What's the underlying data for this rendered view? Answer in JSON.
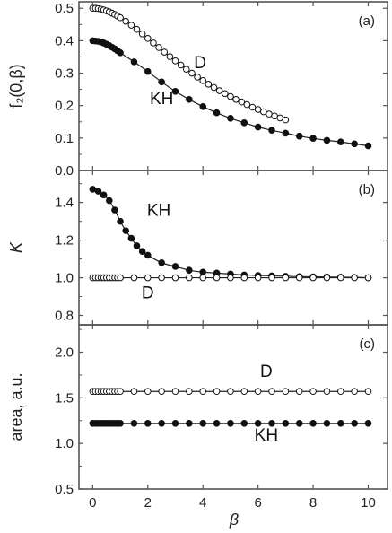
{
  "chart_data": [
    {
      "type": "line",
      "panel_label": "(a)",
      "ylabel": "f₂(0,β)",
      "ylim": [
        0,
        0.52
      ],
      "yticks": [
        0.0,
        0.1,
        0.2,
        0.3,
        0.4,
        0.5
      ],
      "ytick_labels": [
        "0.0",
        "0.1",
        "0.2",
        "0.3",
        "0.4",
        "0.5"
      ],
      "xlim": [
        -0.5,
        10.7
      ],
      "series": [
        {
          "name": "D",
          "marker": "open-circle",
          "label_at": [
            3.9,
            0.315
          ],
          "x": [
            0,
            0.1,
            0.2,
            0.3,
            0.4,
            0.5,
            0.6,
            0.7,
            0.8,
            0.9,
            1.0,
            1.2,
            1.4,
            1.6,
            1.8,
            2.0,
            2.2,
            2.4,
            2.6,
            2.8,
            3.0,
            3.2,
            3.4,
            3.6,
            3.8,
            4.0,
            4.2,
            4.4,
            4.6,
            4.8,
            5.0,
            5.2,
            5.4,
            5.6,
            5.8,
            6.0,
            6.2,
            6.4,
            6.6,
            6.8,
            7.0
          ],
          "y": [
            0.5,
            0.5,
            0.499,
            0.497,
            0.495,
            0.492,
            0.489,
            0.485,
            0.481,
            0.476,
            0.471,
            0.46,
            0.448,
            0.435,
            0.421,
            0.407,
            0.393,
            0.379,
            0.365,
            0.351,
            0.338,
            0.325,
            0.312,
            0.3,
            0.288,
            0.277,
            0.266,
            0.256,
            0.246,
            0.237,
            0.228,
            0.219,
            0.211,
            0.203,
            0.195,
            0.188,
            0.181,
            0.174,
            0.168,
            0.162,
            0.156
          ]
        },
        {
          "name": "KH",
          "marker": "filled-circle",
          "label_at": [
            2.5,
            0.205
          ],
          "x": [
            0,
            0.1,
            0.2,
            0.3,
            0.4,
            0.5,
            0.6,
            0.7,
            0.8,
            0.9,
            1.0,
            1.5,
            2.0,
            2.5,
            3.0,
            3.5,
            4.0,
            4.5,
            5.0,
            5.5,
            6.0,
            6.5,
            7.0,
            7.5,
            8.0,
            8.5,
            9.0,
            9.5,
            10.0
          ],
          "y": [
            0.4,
            0.399,
            0.398,
            0.396,
            0.393,
            0.389,
            0.385,
            0.38,
            0.375,
            0.369,
            0.363,
            0.335,
            0.305,
            0.273,
            0.244,
            0.219,
            0.197,
            0.178,
            0.161,
            0.147,
            0.134,
            0.124,
            0.115,
            0.106,
            0.099,
            0.093,
            0.088,
            0.082,
            0.076
          ]
        }
      ]
    },
    {
      "type": "line",
      "panel_label": "(b)",
      "ylabel": "K",
      "ylim": [
        0.75,
        1.57
      ],
      "yticks": [
        0.8,
        1.0,
        1.2,
        1.4
      ],
      "ytick_labels": [
        "0.8",
        "1.0",
        "1.2",
        "1.4"
      ],
      "xlim": [
        -0.5,
        10.7
      ],
      "series": [
        {
          "name": "KH",
          "marker": "filled-circle",
          "label_at": [
            2.4,
            1.33
          ],
          "x": [
            0,
            0.2,
            0.4,
            0.6,
            0.8,
            1.0,
            1.2,
            1.4,
            1.6,
            1.8,
            2.0,
            2.5,
            3.0,
            3.5,
            4.0,
            4.5,
            5.0,
            5.5,
            6.0,
            6.5,
            7.0,
            7.5,
            8.0,
            8.5,
            9.0,
            9.5,
            10.0
          ],
          "y": [
            1.47,
            1.46,
            1.44,
            1.41,
            1.36,
            1.3,
            1.25,
            1.21,
            1.17,
            1.14,
            1.12,
            1.08,
            1.06,
            1.04,
            1.03,
            1.025,
            1.02,
            1.015,
            1.012,
            1.01,
            1.008,
            1.006,
            1.005,
            1.004,
            1.003,
            1.002,
            1.0
          ]
        },
        {
          "name": "D",
          "marker": "open-circle",
          "label_at": [
            2.0,
            0.89
          ],
          "x": [
            0,
            0.1,
            0.2,
            0.3,
            0.4,
            0.5,
            0.6,
            0.7,
            0.8,
            0.9,
            1.0,
            1.5,
            2.0,
            2.5,
            3.0,
            3.5,
            4.0,
            4.5,
            5.0,
            5.5,
            6.0,
            6.5,
            7.0,
            7.5,
            8.0,
            8.5,
            9.0,
            9.5,
            10.0
          ],
          "y": [
            1.0,
            1.0,
            1.0,
            1.0,
            1.0,
            1.0,
            1.0,
            1.0,
            1.0,
            1.0,
            1.0,
            1.0,
            1.0,
            1.0,
            1.0,
            1.0,
            1.0,
            1.0,
            1.0,
            1.0,
            1.0,
            1.0,
            1.0,
            1.0,
            1.0,
            1.0,
            1.0,
            1.0,
            1.0
          ]
        }
      ]
    },
    {
      "type": "line",
      "panel_label": "(c)",
      "ylabel": "area, a.u.",
      "ylim": [
        0.5,
        2.3
      ],
      "yticks": [
        0.5,
        1.0,
        1.5,
        2.0
      ],
      "ytick_labels": [
        "0.5",
        "1.0",
        "1.5",
        "2.0"
      ],
      "xlim": [
        -0.5,
        10.7
      ],
      "xlabel": "β",
      "xticks": [
        0,
        2,
        4,
        6,
        8,
        10
      ],
      "xtick_labels": [
        "0",
        "2",
        "4",
        "6",
        "8",
        "10"
      ],
      "series": [
        {
          "name": "D",
          "marker": "open-circle",
          "label_at": [
            6.3,
            1.73
          ],
          "x": [
            0,
            0.1,
            0.2,
            0.3,
            0.4,
            0.5,
            0.6,
            0.7,
            0.8,
            0.9,
            1.0,
            1.5,
            2.0,
            2.5,
            3.0,
            3.5,
            4.0,
            4.5,
            5.0,
            5.5,
            6.0,
            6.5,
            7.0,
            7.5,
            8.0,
            8.5,
            9.0,
            9.5,
            10.0
          ],
          "y": [
            1.57,
            1.57,
            1.57,
            1.57,
            1.57,
            1.57,
            1.57,
            1.57,
            1.57,
            1.57,
            1.57,
            1.57,
            1.57,
            1.57,
            1.57,
            1.57,
            1.57,
            1.57,
            1.57,
            1.57,
            1.57,
            1.57,
            1.57,
            1.57,
            1.57,
            1.57,
            1.57,
            1.57,
            1.57
          ]
        },
        {
          "name": "KH",
          "marker": "filled-circle",
          "label_at": [
            6.3,
            1.03
          ],
          "x": [
            0,
            0.1,
            0.2,
            0.3,
            0.4,
            0.5,
            0.6,
            0.7,
            0.8,
            0.9,
            1.0,
            1.5,
            2.0,
            2.5,
            3.0,
            3.5,
            4.0,
            4.5,
            5.0,
            5.5,
            6.0,
            6.5,
            7.0,
            7.5,
            8.0,
            8.5,
            9.0,
            9.5,
            10.0
          ],
          "y": [
            1.22,
            1.22,
            1.22,
            1.22,
            1.22,
            1.22,
            1.22,
            1.22,
            1.22,
            1.22,
            1.22,
            1.22,
            1.22,
            1.22,
            1.22,
            1.22,
            1.22,
            1.22,
            1.22,
            1.22,
            1.22,
            1.22,
            1.22,
            1.22,
            1.22,
            1.22,
            1.22,
            1.22,
            1.22
          ]
        }
      ]
    }
  ]
}
